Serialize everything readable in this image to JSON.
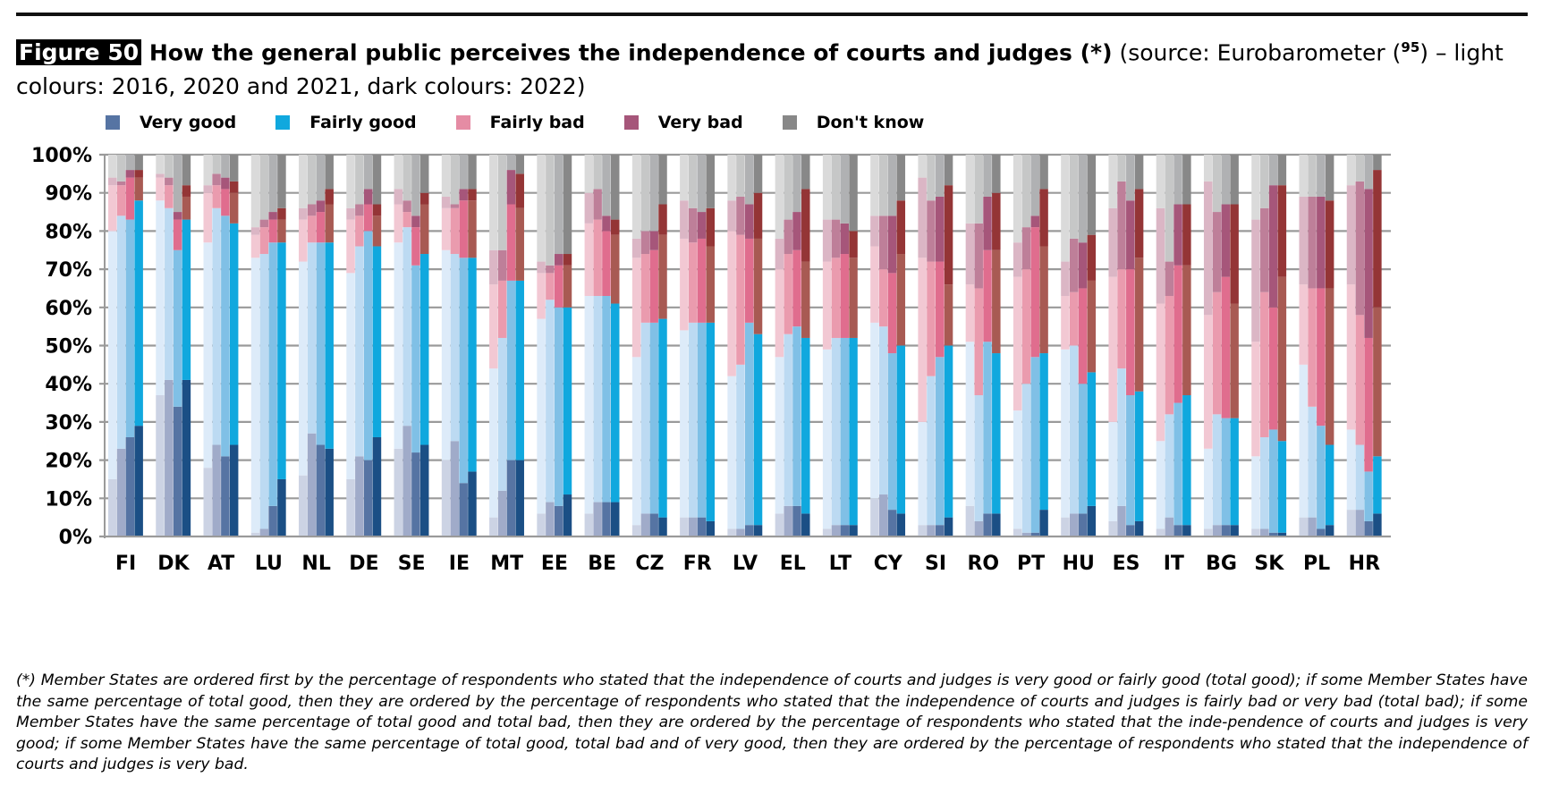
{
  "figure": {
    "tag": "Figure 50",
    "title_bold": " How the general public perceives the independence of courts and judges (*)",
    "title_normal": " (source: Eurobarometer (",
    "footnote_ref": "95",
    "title_normal_2": ") – light colours: 2016, 2020 and 2021, dark colours: 2022)"
  },
  "footnote": "(*) Member States are ordered first by the percentage of respondents who stated that the independence of courts and judges is very good or fairly good (total good); if some Member States have the same percentage of total good, then they are ordered by the percentage of respondents who stated that the independence of courts and judges is fairly bad or very bad (total bad); if some Member States have the same percentage of total good and total bad, then they are ordered by the percentage of respondents who stated that the inde-pendence of courts and judges is very good; if some Member States have the same percentage of total good, total bad and of very good, then they are ordered by the percentage of respondents who stated that the independence of courts and judges is very bad.",
  "chart_data": {
    "type": "bar",
    "stacked": true,
    "title": "How the general public perceives the independence of courts and judges",
    "xlabel": "",
    "ylabel": "",
    "ylim": [
      0,
      100
    ],
    "yticks": [
      "0%",
      "10%",
      "20%",
      "30%",
      "40%",
      "50%",
      "60%",
      "70%",
      "80%",
      "90%",
      "100%"
    ],
    "grid": true,
    "legend_position": "top",
    "years": [
      "2016",
      "2020",
      "2021",
      "2022"
    ],
    "legend": [
      {
        "name": "Very good",
        "color": "#5674a3"
      },
      {
        "name": "Fairly good",
        "color": "#10a8de"
      },
      {
        "name": "Fairly bad",
        "color": "#e58ca4"
      },
      {
        "name": "Very bad",
        "color": "#a6567a"
      },
      {
        "name": "Don't know",
        "color": "#888888"
      }
    ],
    "palette": {
      "2016": [
        "#ccd3e4",
        "#ddebf9",
        "#f2c8d3",
        "#dbb6c5",
        "#dadada"
      ],
      "2020": [
        "#a0abc9",
        "#bcdaf2",
        "#ea9bae",
        "#be7f99",
        "#c6c7c7"
      ],
      "2021": [
        "#5674a3",
        "#80c0e6",
        "#e06d8e",
        "#a6567a",
        "#b0b1b3"
      ],
      "2022": [
        "#1b4f85",
        "#10a8de",
        "#a85a53",
        "#943536",
        "#888888"
      ]
    },
    "segments": [
      "Very good",
      "Fairly good",
      "Fairly bad",
      "Very bad",
      "Don't know"
    ],
    "categories": [
      "FI",
      "DK",
      "AT",
      "LU",
      "NL",
      "DE",
      "SE",
      "IE",
      "MT",
      "EE",
      "BE",
      "CZ",
      "FR",
      "LV",
      "EL",
      "LT",
      "CY",
      "SI",
      "RO",
      "PT",
      "HU",
      "ES",
      "IT",
      "BG",
      "SK",
      "PL",
      "HR"
    ],
    "series": [
      {
        "country": "FI",
        "bars": [
          [
            15,
            65,
            12,
            2,
            6
          ],
          [
            23,
            61,
            8,
            1,
            7
          ],
          [
            26,
            57,
            11,
            2,
            4
          ],
          [
            29,
            59,
            6,
            2,
            4
          ]
        ]
      },
      {
        "country": "DK",
        "bars": [
          [
            37,
            51,
            6,
            1,
            5
          ],
          [
            41,
            45,
            6,
            2,
            6
          ],
          [
            34,
            41,
            8,
            2,
            15
          ],
          [
            41,
            42,
            6,
            3,
            8
          ]
        ]
      },
      {
        "country": "AT",
        "bars": [
          [
            18,
            59,
            13,
            2,
            8
          ],
          [
            24,
            62,
            6,
            3,
            5
          ],
          [
            21,
            63,
            7,
            3,
            6
          ],
          [
            24,
            58,
            8,
            3,
            7
          ]
        ]
      },
      {
        "country": "LU",
        "bars": [
          [
            1,
            72,
            6,
            2,
            19
          ],
          [
            2,
            72,
            7,
            2,
            17
          ],
          [
            8,
            69,
            6,
            2,
            15
          ],
          [
            15,
            62,
            6,
            3,
            14
          ]
        ]
      },
      {
        "country": "NL",
        "bars": [
          [
            16,
            56,
            11,
            3,
            14
          ],
          [
            27,
            50,
            7,
            3,
            13
          ],
          [
            24,
            53,
            8,
            3,
            12
          ],
          [
            23,
            54,
            10,
            4,
            9
          ]
        ]
      },
      {
        "country": "DE",
        "bars": [
          [
            15,
            54,
            14,
            3,
            14
          ],
          [
            21,
            55,
            8,
            3,
            13
          ],
          [
            20,
            60,
            7,
            4,
            9
          ],
          [
            26,
            50,
            8,
            3,
            13
          ]
        ]
      },
      {
        "country": "SE",
        "bars": [
          [
            23,
            54,
            10,
            4,
            9
          ],
          [
            29,
            52,
            4,
            3,
            12
          ],
          [
            22,
            49,
            10,
            3,
            16
          ],
          [
            24,
            50,
            13,
            3,
            10
          ]
        ]
      },
      {
        "country": "IE",
        "bars": [
          [
            20,
            55,
            11,
            3,
            11
          ],
          [
            25,
            49,
            12,
            1,
            13
          ],
          [
            14,
            59,
            15,
            3,
            9
          ],
          [
            17,
            56,
            15,
            3,
            9
          ]
        ]
      },
      {
        "country": "MT",
        "bars": [
          [
            5,
            39,
            22,
            9,
            25
          ],
          [
            12,
            40,
            15,
            8,
            25
          ],
          [
            20,
            47,
            20,
            9,
            4
          ],
          [
            20,
            47,
            19,
            9,
            5
          ]
        ]
      },
      {
        "country": "EE",
        "bars": [
          [
            6,
            51,
            12,
            3,
            28
          ],
          [
            9,
            53,
            7,
            2,
            29
          ],
          [
            8,
            52,
            11,
            3,
            26
          ],
          [
            11,
            49,
            11,
            3,
            26
          ]
        ]
      },
      {
        "country": "BE",
        "bars": [
          [
            6,
            57,
            19,
            8,
            10
          ],
          [
            9,
            54,
            20,
            8,
            9
          ],
          [
            9,
            54,
            17,
            4,
            16
          ],
          [
            9,
            52,
            18,
            4,
            17
          ]
        ]
      },
      {
        "country": "CZ",
        "bars": [
          [
            3,
            44,
            26,
            5,
            22
          ],
          [
            6,
            50,
            18,
            6,
            20
          ],
          [
            6,
            50,
            19,
            5,
            20
          ],
          [
            5,
            52,
            22,
            8,
            13
          ]
        ]
      },
      {
        "country": "FR",
        "bars": [
          [
            5,
            49,
            24,
            10,
            12
          ],
          [
            5,
            51,
            21,
            9,
            14
          ],
          [
            5,
            51,
            22,
            7,
            15
          ],
          [
            4,
            52,
            20,
            10,
            14
          ]
        ]
      },
      {
        "country": "LV",
        "bars": [
          [
            2,
            40,
            38,
            8,
            12
          ],
          [
            2,
            43,
            34,
            10,
            11
          ],
          [
            3,
            53,
            22,
            9,
            13
          ],
          [
            3,
            50,
            25,
            12,
            10
          ]
        ]
      },
      {
        "country": "EL",
        "bars": [
          [
            6,
            41,
            23,
            8,
            22
          ],
          [
            8,
            45,
            21,
            9,
            17
          ],
          [
            8,
            47,
            20,
            10,
            15
          ],
          [
            6,
            46,
            20,
            19,
            9
          ]
        ]
      },
      {
        "country": "LT",
        "bars": [
          [
            2,
            47,
            23,
            11,
            17
          ],
          [
            3,
            49,
            21,
            10,
            17
          ],
          [
            3,
            49,
            22,
            8,
            18
          ],
          [
            3,
            49,
            21,
            7,
            20
          ]
        ]
      },
      {
        "country": "CY",
        "bars": [
          [
            10,
            46,
            20,
            8,
            16
          ],
          [
            11,
            44,
            15,
            14,
            16
          ],
          [
            7,
            41,
            21,
            15,
            16
          ],
          [
            6,
            44,
            24,
            14,
            12
          ]
        ]
      },
      {
        "country": "SI",
        "bars": [
          [
            3,
            27,
            43,
            21,
            6
          ],
          [
            3,
            39,
            30,
            16,
            12
          ],
          [
            3,
            44,
            25,
            17,
            11
          ],
          [
            5,
            45,
            16,
            26,
            8
          ]
        ]
      },
      {
        "country": "RO",
        "bars": [
          [
            8,
            43,
            15,
            16,
            18
          ],
          [
            4,
            33,
            28,
            17,
            18
          ],
          [
            6,
            45,
            24,
            14,
            11
          ],
          [
            6,
            42,
            27,
            15,
            10
          ]
        ]
      },
      {
        "country": "PT",
        "bars": [
          [
            2,
            31,
            35,
            9,
            23
          ],
          [
            1,
            39,
            30,
            11,
            19
          ],
          [
            1,
            46,
            34,
            3,
            16
          ],
          [
            7,
            41,
            28,
            15,
            9
          ]
        ]
      },
      {
        "country": "HU",
        "bars": [
          [
            5,
            44,
            14,
            9,
            28
          ],
          [
            6,
            44,
            14,
            14,
            22
          ],
          [
            6,
            34,
            25,
            12,
            23
          ],
          [
            8,
            35,
            24,
            12,
            21
          ]
        ]
      },
      {
        "country": "ES",
        "bars": [
          [
            4,
            26,
            38,
            18,
            14
          ],
          [
            8,
            36,
            26,
            23,
            7
          ],
          [
            3,
            34,
            33,
            18,
            12
          ],
          [
            4,
            34,
            35,
            18,
            9
          ]
        ]
      },
      {
        "country": "IT",
        "bars": [
          [
            2,
            23,
            36,
            25,
            14
          ],
          [
            5,
            27,
            31,
            9,
            28
          ],
          [
            3,
            32,
            36,
            16,
            13
          ],
          [
            3,
            34,
            34,
            16,
            13
          ]
        ]
      },
      {
        "country": "BG",
        "bars": [
          [
            2,
            21,
            35,
            35,
            7
          ],
          [
            3,
            29,
            32,
            21,
            15
          ],
          [
            3,
            28,
            37,
            19,
            13
          ],
          [
            3,
            28,
            30,
            26,
            13
          ]
        ]
      },
      {
        "country": "SK",
        "bars": [
          [
            2,
            19,
            30,
            32,
            17
          ],
          [
            2,
            24,
            38,
            22,
            14
          ],
          [
            1,
            27,
            32,
            32,
            8
          ],
          [
            1,
            24,
            43,
            24,
            8
          ]
        ]
      },
      {
        "country": "PL",
        "bars": [
          [
            5,
            40,
            21,
            23,
            11
          ],
          [
            5,
            29,
            31,
            24,
            11
          ],
          [
            2,
            27,
            36,
            24,
            11
          ],
          [
            3,
            21,
            41,
            23,
            12
          ]
        ]
      },
      {
        "country": "HR",
        "bars": [
          [
            7,
            21,
            38,
            26,
            8
          ],
          [
            7,
            17,
            34,
            35,
            7
          ],
          [
            4,
            13,
            35,
            39,
            9
          ],
          [
            6,
            15,
            39,
            36,
            4
          ]
        ]
      }
    ]
  }
}
